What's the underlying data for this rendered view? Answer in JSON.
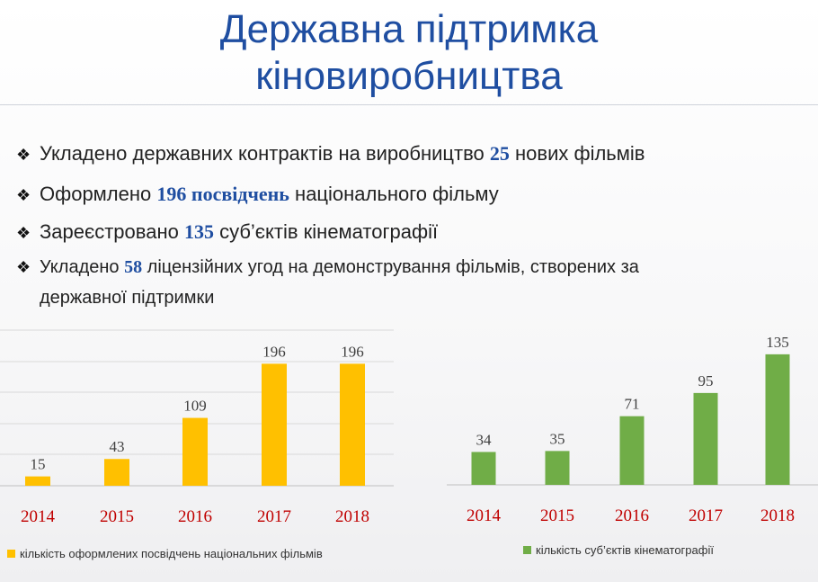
{
  "title_line1": "Державна підтримка",
  "title_line2": "кіновиробництва",
  "bullets": [
    {
      "mark": "❖",
      "before": "Укладено державних контрактів на виробництво ",
      "num": "25",
      "after": " нових фільмів"
    },
    {
      "mark": "❖",
      "before": "Оформлено ",
      "num": "196 посвідчень",
      "after": " національного фільму"
    },
    {
      "mark": "❖",
      "before": "Зареєстровано ",
      "num": "135",
      "after": " суб’єктів кінематографії"
    },
    {
      "mark": "❖",
      "before": "Укладено ",
      "num": "58",
      "after": " ліцензійних угод на демонстрування фільмів, створених за",
      "cont": "державної підтримки"
    }
  ],
  "colors": {
    "title": "#1f4ea1",
    "number": "#1f4ea1",
    "year": "#c00000",
    "bar_yellow": "#ffc000",
    "bar_green": "#70ad47"
  },
  "chart_data": [
    {
      "type": "bar",
      "categories": [
        "2014",
        "2015",
        "2016",
        "2017",
        "2018"
      ],
      "series": [
        {
          "name": "кількість оформлених посвідчень національних фільмів",
          "values": [
            15,
            43,
            109,
            196,
            196
          ],
          "color": "#ffc000"
        }
      ],
      "ylim": [
        0,
        250
      ],
      "grid": true,
      "legend": "bottom-left"
    },
    {
      "type": "bar",
      "categories": [
        "2014",
        "2015",
        "2016",
        "2017",
        "2018"
      ],
      "series": [
        {
          "name": "кількість суб’єктів кінематографії",
          "values": [
            34,
            35,
            71,
            95,
            135
          ],
          "color": "#70ad47"
        }
      ],
      "ylim": [
        0,
        160
      ],
      "grid": false,
      "legend": "bottom-center"
    }
  ]
}
